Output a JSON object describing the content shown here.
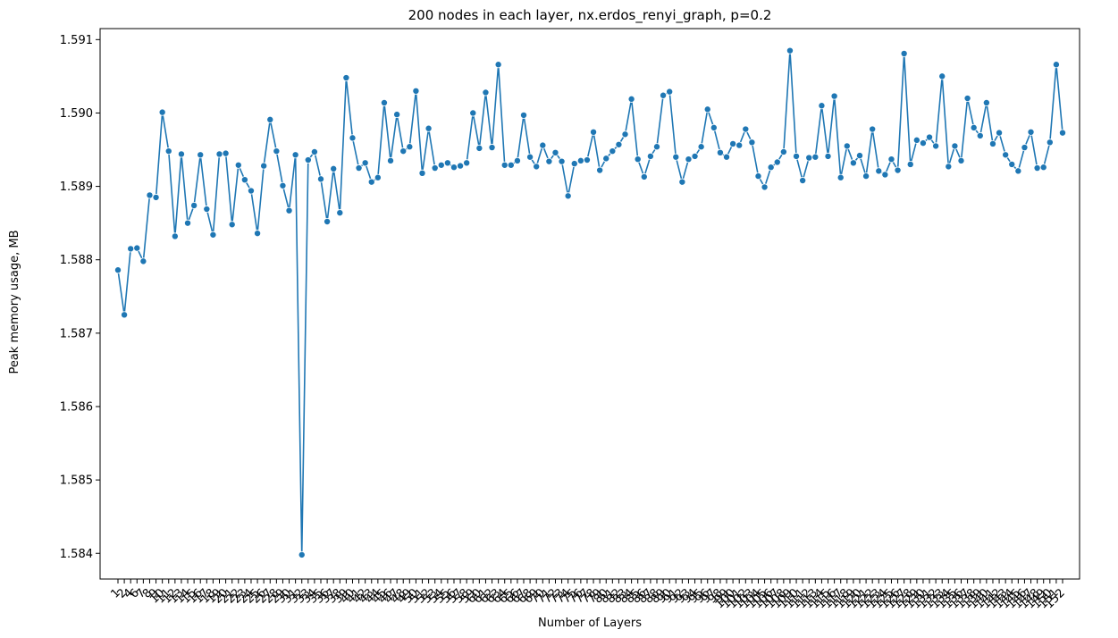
{
  "chart_data": {
    "type": "line",
    "title": "200 nodes in each layer, nx.erdos_renyi_graph, p=0.2",
    "xlabel": "Number of Layers",
    "ylabel": "Peak memory usage, MB",
    "ylim": [
      1.58365,
      1.59115
    ],
    "yticks": [
      1.584,
      1.585,
      1.586,
      1.587,
      1.588,
      1.589,
      1.59,
      1.591
    ],
    "ytick_labels": [
      "1.584",
      "1.585",
      "1.586",
      "1.587",
      "1.588",
      "1.589",
      "1.590",
      "1.591"
    ],
    "x_tick_labels_note": "categorical axis, labels rotated 45° and heavily overlapping",
    "x": [
      "1",
      "2",
      "4",
      "6",
      "7",
      "8",
      "9",
      "10",
      "11",
      "12",
      "13",
      "14",
      "15",
      "16",
      "17",
      "18",
      "19",
      "20",
      "21",
      "22",
      "23",
      "24",
      "25",
      "26",
      "27",
      "28",
      "29",
      "30",
      "31",
      "32",
      "33",
      "34",
      "35",
      "36",
      "37",
      "38",
      "39",
      "40",
      "41",
      "42",
      "43",
      "44",
      "45",
      "46",
      "47",
      "48",
      "49",
      "50",
      "51",
      "52",
      "53",
      "54",
      "55",
      "56",
      "57",
      "58",
      "59",
      "60",
      "61",
      "62",
      "63",
      "64",
      "65",
      "66",
      "67",
      "68",
      "69",
      "70",
      "71",
      "72",
      "73",
      "74",
      "75",
      "76",
      "77",
      "78",
      "79",
      "80",
      "81",
      "82",
      "83",
      "84",
      "85",
      "86",
      "87",
      "88",
      "89",
      "90",
      "91",
      "92",
      "93",
      "94",
      "95",
      "96",
      "97",
      "98",
      "99",
      "100",
      "101",
      "102",
      "103",
      "104",
      "105",
      "106",
      "107",
      "108",
      "109",
      "110",
      "111",
      "112",
      "113",
      "114",
      "115",
      "116",
      "117",
      "118",
      "119",
      "120",
      "121",
      "122",
      "123",
      "124",
      "125",
      "126",
      "127",
      "128",
      "129",
      "130",
      "131",
      "132",
      "133",
      "134",
      "135",
      "136",
      "137",
      "138",
      "139",
      "140",
      "141",
      "142",
      "143",
      "144",
      "145",
      "146",
      "147",
      "148",
      "149",
      "150",
      "151",
      "152"
    ],
    "series": [
      {
        "color": "#1f77b4",
        "marker": "circle",
        "values": [
          1.58786,
          1.58725,
          1.58815,
          1.58816,
          1.58798,
          1.58888,
          1.58885,
          1.59001,
          1.58948,
          1.58832,
          1.58944,
          1.5885,
          1.58874,
          1.58943,
          1.58869,
          1.58834,
          1.58944,
          1.58945,
          1.58848,
          1.58929,
          1.58909,
          1.58894,
          1.58836,
          1.58928,
          1.58991,
          1.58948,
          1.58901,
          1.58867,
          1.58943,
          1.58398,
          1.58936,
          1.58947,
          1.5891,
          1.58852,
          1.58924,
          1.58864,
          1.59048,
          1.58966,
          1.58925,
          1.58932,
          1.58906,
          1.58912,
          1.59014,
          1.58935,
          1.58998,
          1.58948,
          1.58954,
          1.5903,
          1.58918,
          1.58979,
          1.58925,
          1.58929,
          1.58932,
          1.58926,
          1.58928,
          1.58932,
          1.59,
          1.58952,
          1.59028,
          1.58953,
          1.59066,
          1.58929,
          1.58929,
          1.58935,
          1.58997,
          1.5894,
          1.58927,
          1.58956,
          1.58934,
          1.58946,
          1.58934,
          1.58887,
          1.58931,
          1.58935,
          1.58936,
          1.58974,
          1.58922,
          1.58938,
          1.58948,
          1.58957,
          1.58971,
          1.59019,
          1.58937,
          1.58913,
          1.58941,
          1.58954,
          1.59024,
          1.59029,
          1.5894,
          1.58906,
          1.58937,
          1.58941,
          1.58954,
          1.59005,
          1.5898,
          1.58946,
          1.5894,
          1.58958,
          1.58956,
          1.58978,
          1.5896,
          1.58914,
          1.58899,
          1.58926,
          1.58933,
          1.58947,
          1.59085,
          1.58941,
          1.58908,
          1.58939,
          1.5894,
          1.5901,
          1.58941,
          1.59023,
          1.58912,
          1.58955,
          1.58932,
          1.58942,
          1.58914,
          1.58978,
          1.58921,
          1.58916,
          1.58937,
          1.58922,
          1.59081,
          1.5893,
          1.58963,
          1.58959,
          1.58967,
          1.58955,
          1.5905,
          1.58927,
          1.58955,
          1.58935,
          1.5902,
          1.5898,
          1.58969,
          1.59014,
          1.58958,
          1.58973,
          1.58943,
          1.5893,
          1.58921,
          1.58953,
          1.58974,
          1.58925,
          1.58926,
          1.5896,
          1.59066,
          1.58973
        ]
      }
    ]
  }
}
